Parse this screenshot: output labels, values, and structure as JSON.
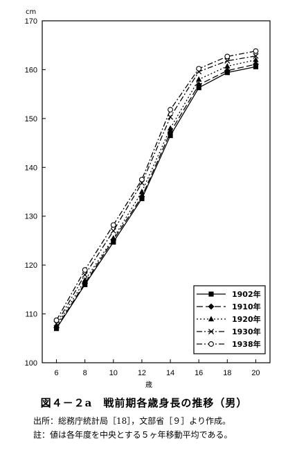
{
  "chart_data": {
    "type": "line",
    "title": "",
    "xlabel": "歳",
    "ylabel": "cm",
    "x": [
      6,
      8,
      10,
      12,
      14,
      16,
      18,
      20
    ],
    "xlim": [
      5,
      21
    ],
    "ylim": [
      100,
      170
    ],
    "xticks": [
      6,
      8,
      10,
      12,
      14,
      16,
      18,
      20
    ],
    "yticks": [
      100,
      110,
      120,
      130,
      140,
      150,
      160,
      170
    ],
    "grid": false,
    "legend_position": "bottom-right",
    "series": [
      {
        "name": "1902年",
        "marker": "square",
        "dash": "solid",
        "values": [
          107.0,
          116.0,
          124.7,
          133.6,
          146.5,
          156.3,
          159.4,
          160.6
        ]
      },
      {
        "name": "1910年",
        "marker": "diamond",
        "dash": "longdash",
        "values": [
          107.2,
          116.3,
          125.2,
          134.0,
          147.2,
          156.9,
          159.8,
          161.1
        ]
      },
      {
        "name": "1920年",
        "marker": "triangle",
        "dash": "dotted",
        "values": [
          107.6,
          116.9,
          125.5,
          135.0,
          148.0,
          158.0,
          160.7,
          162.0
        ]
      },
      {
        "name": "1930年",
        "marker": "x",
        "dash": "dashdot",
        "values": [
          108.0,
          118.0,
          127.0,
          136.8,
          150.3,
          159.6,
          161.8,
          162.8
        ]
      },
      {
        "name": "1938年",
        "marker": "circle",
        "dash": "dashdot",
        "values": [
          108.7,
          119.0,
          128.2,
          137.5,
          151.8,
          160.2,
          162.7,
          163.8
        ]
      }
    ]
  },
  "caption": {
    "title": "図４－２a　戦前期各歳身長の推移（男）",
    "source": "出所：総務庁統計局［18］，文部省［９］より作成。",
    "note": "註：値は各年度を中央とする５ヶ年移動平均である。"
  }
}
